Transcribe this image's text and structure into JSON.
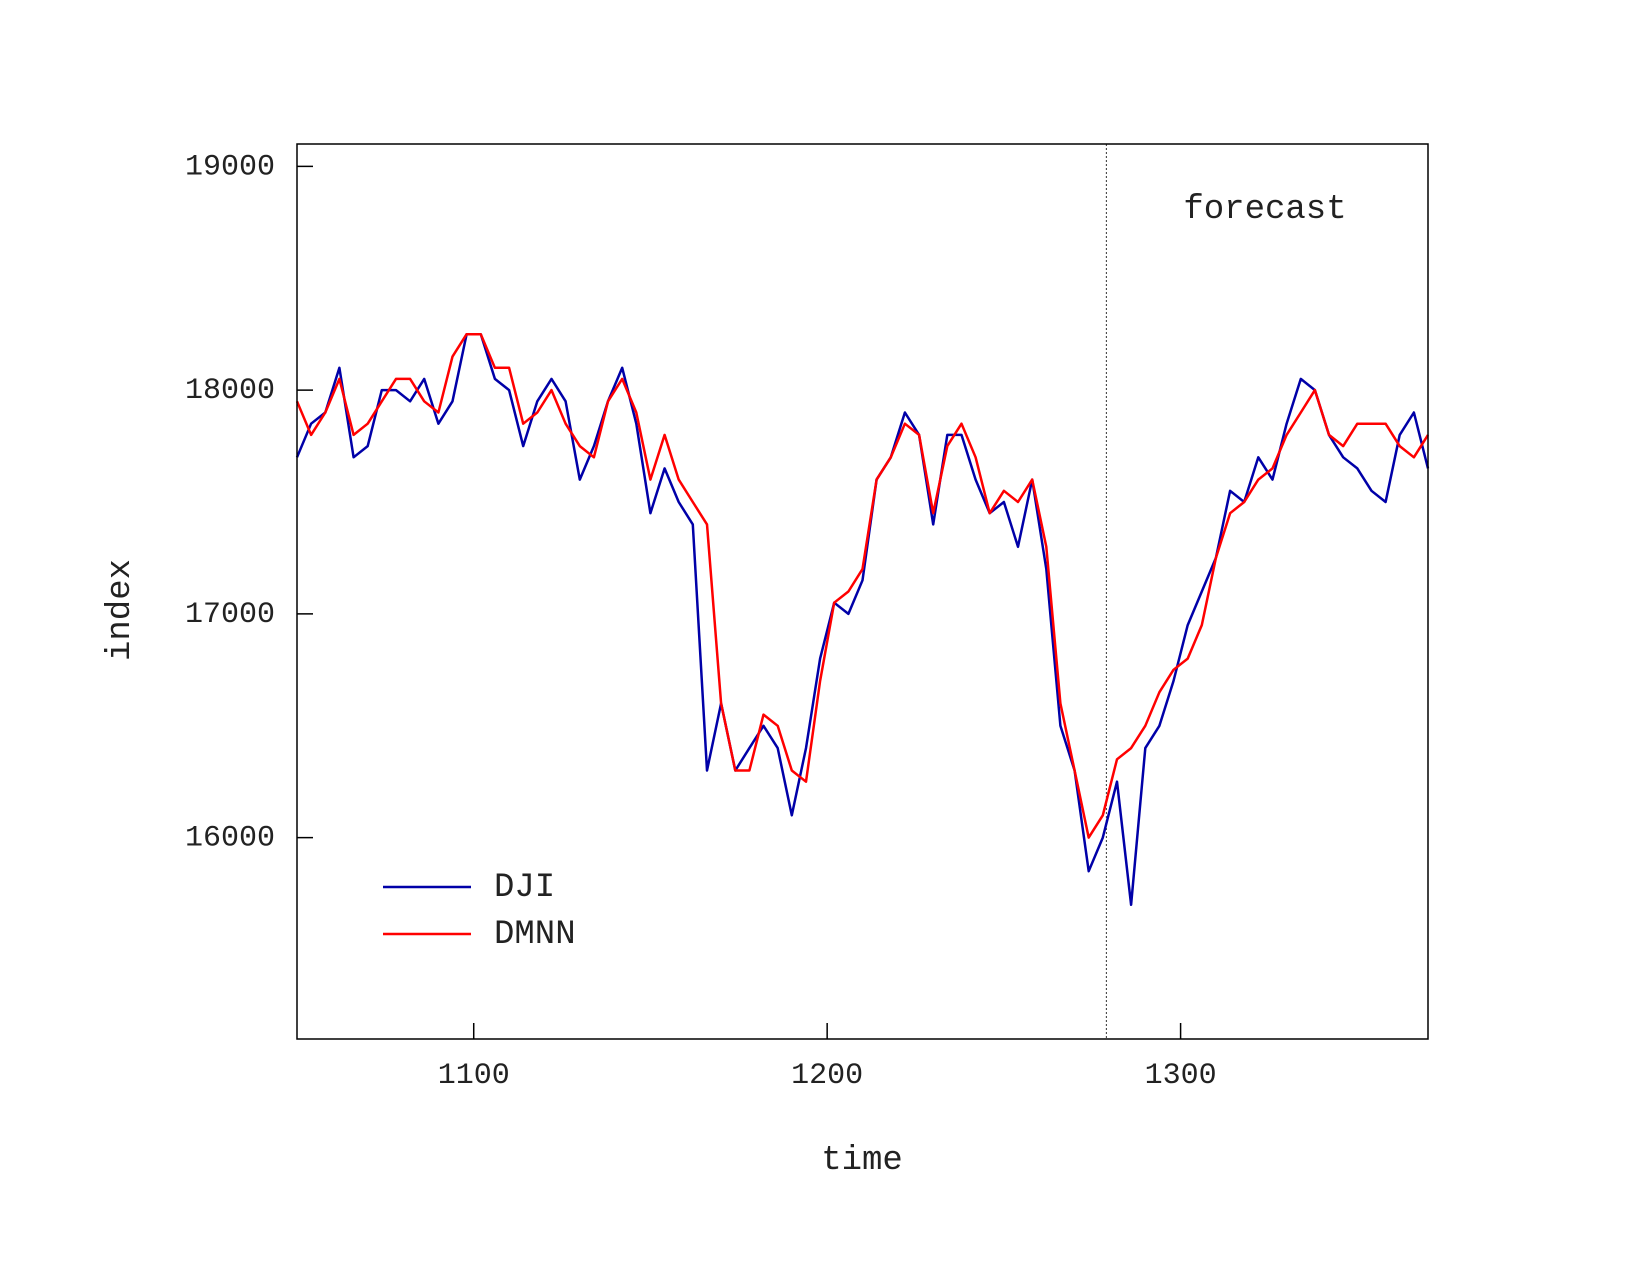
{
  "chart_data": {
    "type": "line",
    "xlabel": "time",
    "ylabel": "index",
    "x": [
      1050,
      1054,
      1058,
      1062,
      1066,
      1070,
      1074,
      1078,
      1082,
      1086,
      1090,
      1094,
      1098,
      1102,
      1106,
      1110,
      1114,
      1118,
      1122,
      1126,
      1130,
      1134,
      1138,
      1142,
      1146,
      1150,
      1154,
      1158,
      1162,
      1166,
      1170,
      1174,
      1178,
      1182,
      1186,
      1190,
      1194,
      1198,
      1202,
      1206,
      1210,
      1214,
      1218,
      1222,
      1226,
      1230,
      1234,
      1238,
      1242,
      1246,
      1250,
      1254,
      1258,
      1262,
      1266,
      1270,
      1274,
      1278,
      1282,
      1286,
      1290,
      1294,
      1298,
      1302,
      1306,
      1310,
      1314,
      1318,
      1322,
      1326,
      1330,
      1334,
      1338,
      1342,
      1346,
      1350,
      1354,
      1358,
      1362,
      1366,
      1370
    ],
    "series": [
      {
        "name": "DJI",
        "color": "#0000a8",
        "values": [
          17700,
          17850,
          17900,
          18100,
          17700,
          17750,
          18000,
          18000,
          17950,
          18050,
          17850,
          17950,
          18250,
          18250,
          18050,
          18000,
          17750,
          17950,
          18050,
          17950,
          17600,
          17750,
          17950,
          18100,
          17850,
          17450,
          17650,
          17500,
          17400,
          16300,
          16600,
          16300,
          16400,
          16500,
          16400,
          16100,
          16400,
          16800,
          17050,
          17000,
          17150,
          17600,
          17700,
          17900,
          17800,
          17400,
          17800,
          17800,
          17600,
          17450,
          17500,
          17300,
          17600,
          17200,
          16500,
          16300,
          15850,
          16000,
          16250,
          15700,
          16400,
          16500,
          16700,
          16950,
          17100,
          17250,
          17550,
          17500,
          17700,
          17600,
          17850,
          18050,
          18000,
          17800,
          17700,
          17650,
          17550,
          17500,
          17800,
          17900,
          17650
        ]
      },
      {
        "name": "DMNN",
        "color": "#ff0000",
        "values": [
          17950,
          17800,
          17900,
          18050,
          17800,
          17850,
          17950,
          18050,
          18050,
          17950,
          17900,
          18150,
          18250,
          18250,
          18100,
          18100,
          17850,
          17900,
          18000,
          17850,
          17750,
          17700,
          17950,
          18050,
          17900,
          17600,
          17800,
          17600,
          17500,
          17400,
          16600,
          16300,
          16300,
          16550,
          16500,
          16300,
          16250,
          16700,
          17050,
          17100,
          17200,
          17600,
          17700,
          17850,
          17800,
          17450,
          17750,
          17850,
          17700,
          17450,
          17550,
          17500,
          17600,
          17300,
          16600,
          16300,
          16000,
          16100,
          16350,
          16400,
          16500,
          16650,
          16750,
          16800,
          16950,
          17250,
          17450,
          17500,
          17600,
          17650,
          17800,
          17900,
          18000,
          17800,
          17750,
          17850,
          17850,
          17850,
          17750,
          17700,
          17800
        ]
      }
    ],
    "xlim": [
      1050,
      1370
    ],
    "ylim": [
      15100,
      19100
    ],
    "xticks": [
      1100,
      1200,
      1300
    ],
    "yticks": [
      16000,
      17000,
      18000,
      19000
    ],
    "vline": 1279,
    "annotation": "forecast",
    "legend": "lower left",
    "grid": false
  }
}
